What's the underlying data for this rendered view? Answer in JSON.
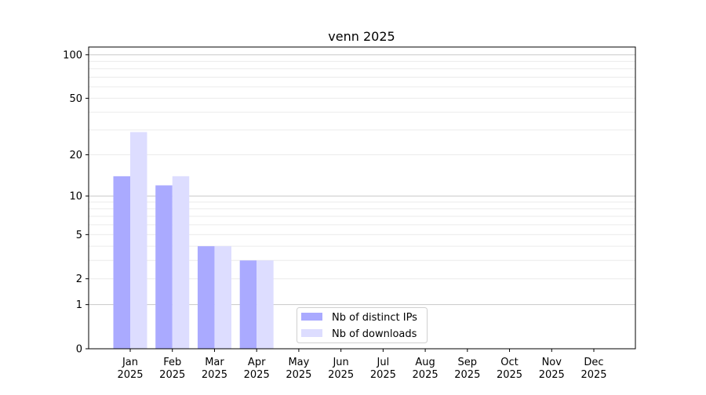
{
  "chart_data": {
    "type": "bar",
    "title": "venn 2025",
    "xlabel": "",
    "ylabel": "",
    "yscale": "log10(1+y)",
    "ylim": [
      0,
      113
    ],
    "yticks": [
      0,
      1,
      2,
      5,
      10,
      20,
      50,
      100
    ],
    "grid": true,
    "legend_position": "bottom-center",
    "categories": [
      "Jan\n2025",
      "Feb\n2025",
      "Mar\n2025",
      "Apr\n2025",
      "May\n2025",
      "Jun\n2025",
      "Jul\n2025",
      "Aug\n2025",
      "Sep\n2025",
      "Oct\n2025",
      "Nov\n2025",
      "Dec\n2025"
    ],
    "series": [
      {
        "name": "Nb of distinct IPs",
        "color": "#aaaaff",
        "values": [
          14,
          12,
          4,
          3,
          0,
          0,
          0,
          0,
          0,
          0,
          0,
          0
        ]
      },
      {
        "name": "Nb of downloads",
        "color": "#ddddff",
        "values": [
          29,
          14,
          4,
          3,
          0,
          0,
          0,
          0,
          0,
          0,
          0,
          0
        ]
      }
    ]
  }
}
